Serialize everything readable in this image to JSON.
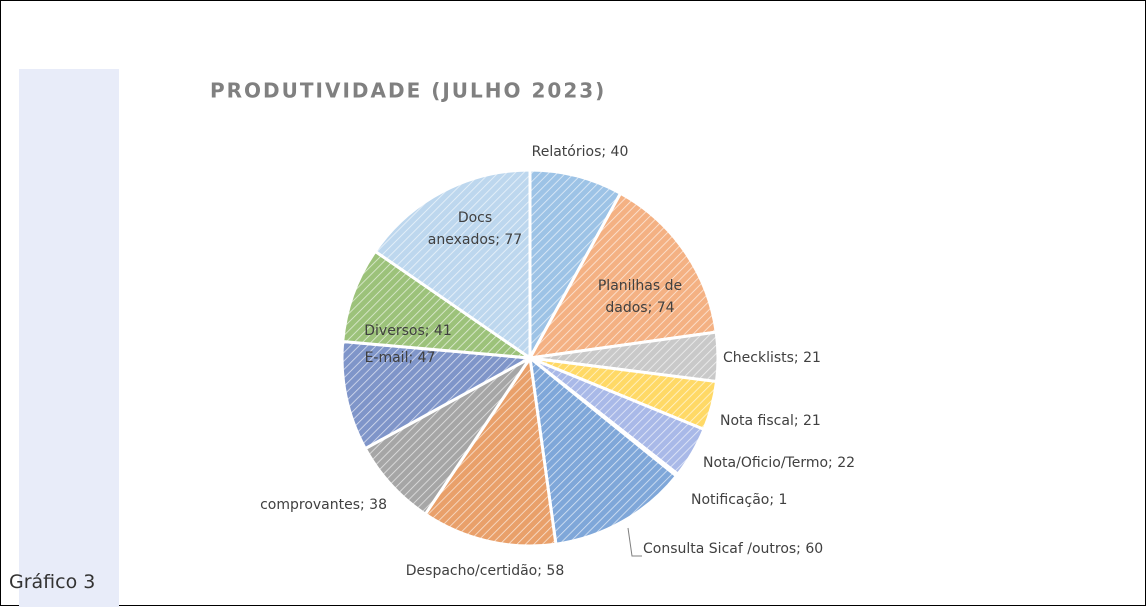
{
  "caption": "Gráfico 3",
  "chart_data": {
    "type": "pie",
    "title": "PRODUTIVIDADE (JULHO 2023)",
    "values": [
      40,
      74,
      21,
      21,
      22,
      1,
      60,
      58,
      38,
      47,
      41,
      77
    ],
    "value_labels": [
      "Relatórios; 40",
      "Planilhas de dados; 74",
      "Checklists; 21",
      "Nota fiscal; 21",
      "Nota/Oficio/Termo; 22",
      "Notificação; 1",
      "Consulta Sicaf /outros; 60",
      "Despacho/certidão; 58",
      "comprovantes; 38",
      "E-mail; 47",
      "Diversos; 41",
      "Docs anexados; 77"
    ],
    "colors": [
      "#9dc3e6",
      "#f4b183",
      "#c9c9c9",
      "#ffd966",
      "#a9b9e8",
      "#a9d18e",
      "#7fa7d9",
      "#e9a06a",
      "#a6a6a6",
      "#7f95c9",
      "#9cc27a",
      "#bdd7ee"
    ]
  }
}
